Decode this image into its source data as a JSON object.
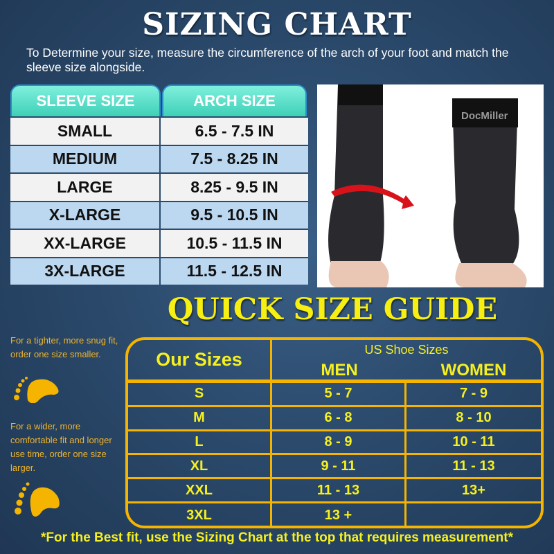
{
  "title": "SIZING CHART",
  "intro": "To Determine your size, measure the circumference of the arch of your foot and match the sleeve size alongside.",
  "sizing_table": {
    "headers": [
      "SLEEVE SIZE",
      "ARCH SIZE"
    ],
    "rows": [
      [
        "SMALL",
        "6.5 - 7.5 IN"
      ],
      [
        "MEDIUM",
        "7.5 - 8.25 IN"
      ],
      [
        "LARGE",
        "8.25 - 9.5 IN"
      ],
      [
        "X-LARGE",
        "9.5 - 10.5 IN"
      ],
      [
        "XX-LARGE",
        "10.5 - 11.5 IN"
      ],
      [
        "3X-LARGE",
        "11.5 - 12.5 IN"
      ]
    ]
  },
  "photo": {
    "brand_text": "DocMiller"
  },
  "quick_title": "QUICK SIZE GUIDE",
  "tips": [
    "For a tighter, more snug fit, order one size smaller.",
    "For a wider, more comfortable fit and longer use time, order one size larger."
  ],
  "quick_table": {
    "our_sizes": "Our Sizes",
    "us_shoe_sizes": "US Shoe Sizes",
    "men": "MEN",
    "women": "WOMEN",
    "rows": [
      [
        "S",
        "5 - 7",
        "7 - 9"
      ],
      [
        "M",
        "6 - 8",
        "8 - 10"
      ],
      [
        "L",
        "8 - 9",
        "10 - 11"
      ],
      [
        "XL",
        "9 - 11",
        "11 - 13"
      ],
      [
        "XXL",
        "11 - 13",
        "13+"
      ],
      [
        "3XL",
        "13 +",
        ""
      ]
    ]
  },
  "footer": "*For the Best fit, use the Sizing Chart at the top that requires measurement*",
  "colors": {
    "background": "#2b4a6c",
    "teal_header": "#4fd8c0",
    "row_light": "#f2f2f2",
    "row_blue": "#bcd7f0",
    "yellow": "#f7f020",
    "orange": "#f5b400"
  },
  "icons": [
    "footprint-icon",
    "curved-arrow-icon"
  ]
}
